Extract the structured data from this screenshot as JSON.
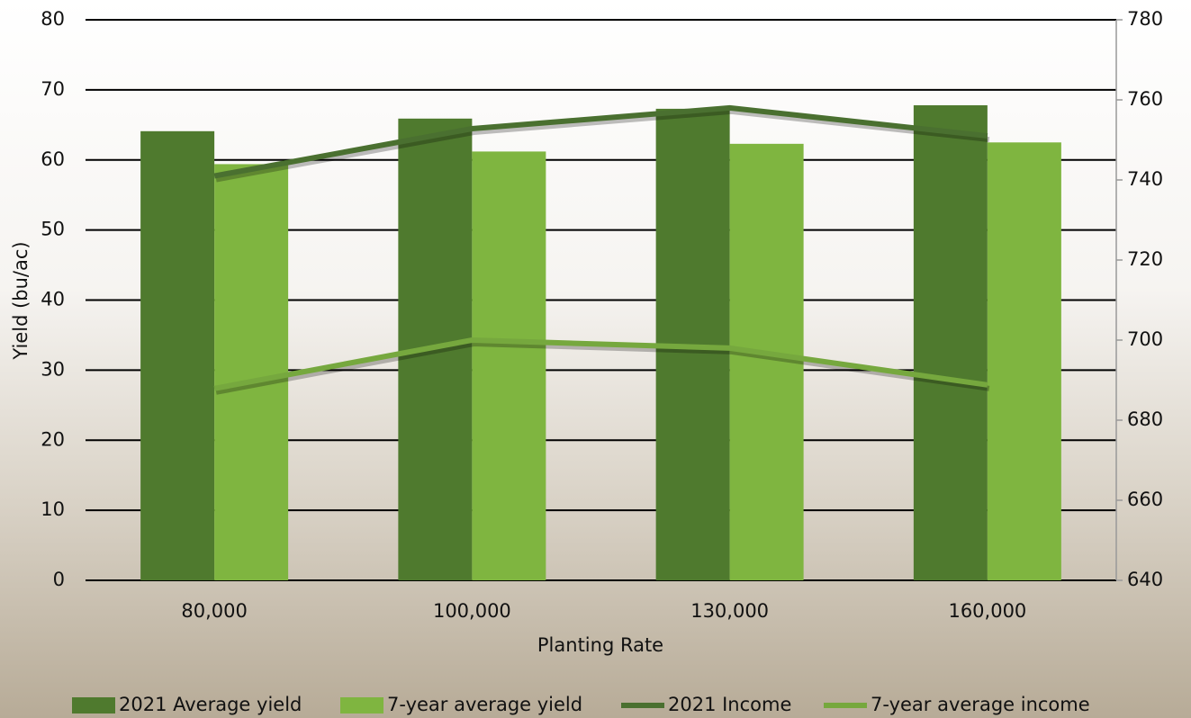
{
  "chart_data": {
    "type": "bar-line",
    "categories": [
      "80,000",
      "100,000",
      "130,000",
      "160,000"
    ],
    "xlabel": "Planting Rate",
    "ylabel": "Yield (bu/ac)",
    "ylim": [
      0,
      80
    ],
    "yticks": [
      0,
      10,
      20,
      30,
      40,
      50,
      60,
      70,
      80
    ],
    "y2lim": [
      640,
      780
    ],
    "y2ticks": [
      640,
      660,
      680,
      700,
      720,
      740,
      760,
      780
    ],
    "grid": true,
    "legend": "bottom",
    "series": [
      {
        "name": "2021 Average yield",
        "kind": "bar",
        "color": "#4f7a2e",
        "values": [
          64.1,
          65.9,
          67.3,
          67.8
        ]
      },
      {
        "name": "7-year average yield",
        "kind": "bar",
        "color": "#7fb540",
        "values": [
          59.4,
          61.2,
          62.3,
          62.5
        ]
      },
      {
        "name": "2021 Income",
        "kind": "line",
        "axis": "y2",
        "color": "#4a7030",
        "values": [
          741,
          752.8,
          758,
          751
        ]
      },
      {
        "name": "7-year average income",
        "kind": "line",
        "axis": "y2",
        "color": "#76a83e",
        "values": [
          687.9,
          700,
          698,
          688.8
        ]
      }
    ]
  }
}
